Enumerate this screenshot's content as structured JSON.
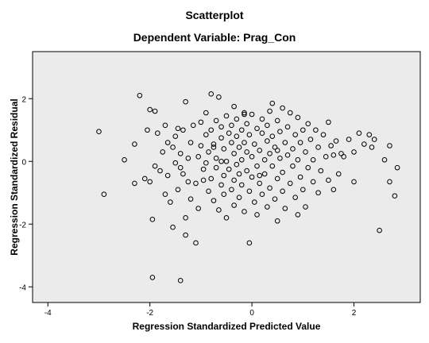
{
  "chart_data": {
    "type": "scatter",
    "title": "Scatterplot",
    "subtitle": "Dependent Variable: Prag_Con",
    "xlabel": "Regression Standardized Predicted Value",
    "ylabel": "Regression Standardized Residual",
    "xlim": [
      -4.3,
      3.3
    ],
    "ylim": [
      -4.5,
      3.5
    ],
    "xticks": [
      -4,
      -2,
      0,
      2
    ],
    "yticks": [
      2,
      0,
      -2,
      -4
    ],
    "grid": false,
    "legend": "none",
    "colors": {
      "plot_background": "#ebebeb",
      "points": "#000000"
    },
    "points": [
      [
        -3.0,
        0.95
      ],
      [
        -2.9,
        -1.05
      ],
      [
        -2.5,
        0.05
      ],
      [
        -2.3,
        0.55
      ],
      [
        -2.3,
        -0.7
      ],
      [
        -2.2,
        2.1
      ],
      [
        -2.1,
        -0.55
      ],
      [
        -2.0,
        1.65
      ],
      [
        -2.0,
        -0.65
      ],
      [
        -1.95,
        -1.85
      ],
      [
        -1.9,
        1.6
      ],
      [
        -1.9,
        -0.15
      ],
      [
        -1.85,
        0.9
      ],
      [
        -1.8,
        -0.3
      ],
      [
        -1.75,
        0.3
      ],
      [
        -1.7,
        1.15
      ],
      [
        -1.7,
        -1.05
      ],
      [
        -1.65,
        -0.45
      ],
      [
        -1.65,
        0.6
      ],
      [
        -1.6,
        -1.3
      ],
      [
        -1.55,
        0.45
      ],
      [
        -1.55,
        -2.1
      ],
      [
        -1.5,
        0.8
      ],
      [
        -1.5,
        -0.05
      ],
      [
        -1.45,
        1.05
      ],
      [
        -1.45,
        -0.9
      ],
      [
        -1.4,
        -0.2
      ],
      [
        -1.4,
        0.25
      ],
      [
        -1.35,
        1.0
      ],
      [
        -1.35,
        -0.4
      ],
      [
        -1.3,
        -1.8
      ],
      [
        -1.3,
        1.9
      ],
      [
        -1.25,
        0.1
      ],
      [
        -1.25,
        -0.65
      ],
      [
        -1.2,
        0.6
      ],
      [
        -1.2,
        -1.2
      ],
      [
        -1.15,
        1.15
      ],
      [
        -1.1,
        -0.7
      ],
      [
        -1.1,
        -2.6
      ],
      [
        -1.05,
        0.15
      ],
      [
        -1.05,
        -1.5
      ],
      [
        -1.0,
        0.5
      ],
      [
        -1.0,
        1.25
      ],
      [
        -0.95,
        -0.25
      ],
      [
        -0.95,
        -0.6
      ],
      [
        -0.9,
        1.55
      ],
      [
        -0.9,
        0.85
      ],
      [
        -0.9,
        -0.05
      ],
      [
        -0.85,
        0.3
      ],
      [
        -0.85,
        -0.95
      ],
      [
        -0.8,
        2.15
      ],
      [
        -0.8,
        1.0
      ],
      [
        -0.8,
        -0.55
      ],
      [
        -0.75,
        0.55
      ],
      [
        -0.75,
        -1.25
      ],
      [
        -0.7,
        0.1
      ],
      [
        -0.7,
        1.3
      ],
      [
        -0.7,
        -0.2
      ],
      [
        -0.65,
        2.05
      ],
      [
        -0.65,
        -1.55
      ],
      [
        -0.6,
        0.75
      ],
      [
        -0.6,
        -0.75
      ],
      [
        -0.6,
        1.1
      ],
      [
        -0.55,
        0.4
      ],
      [
        -0.55,
        -0.45
      ],
      [
        -0.55,
        -1.05
      ],
      [
        -0.5,
        0.0
      ],
      [
        -0.5,
        1.45
      ],
      [
        -0.5,
        -1.8
      ],
      [
        -0.45,
        0.9
      ],
      [
        -0.45,
        -0.25
      ],
      [
        -0.4,
        0.6
      ],
      [
        -0.4,
        -0.9
      ],
      [
        -0.4,
        1.15
      ],
      [
        -0.35,
        0.25
      ],
      [
        -0.35,
        -0.6
      ],
      [
        -0.35,
        -1.4
      ],
      [
        -0.3,
        0.8
      ],
      [
        -0.3,
        -0.1
      ],
      [
        -0.3,
        1.35
      ],
      [
        -0.25,
        0.45
      ],
      [
        -0.25,
        -1.15
      ],
      [
        -0.25,
        -0.4
      ],
      [
        -0.2,
        1.0
      ],
      [
        -0.2,
        0.05
      ],
      [
        -0.2,
        -0.75
      ],
      [
        -0.15,
        1.55
      ],
      [
        -0.15,
        0.6
      ],
      [
        -0.15,
        -1.6
      ],
      [
        -0.1,
        0.3
      ],
      [
        -0.1,
        -0.3
      ],
      [
        -0.1,
        1.2
      ],
      [
        -0.05,
        0.85
      ],
      [
        -0.05,
        -0.95
      ],
      [
        -0.05,
        -2.6
      ],
      [
        0.0,
        0.15
      ],
      [
        0.0,
        1.5
      ],
      [
        0.0,
        -0.5
      ],
      [
        0.05,
        0.55
      ],
      [
        0.05,
        -1.3
      ],
      [
        0.1,
        1.05
      ],
      [
        0.1,
        -0.15
      ],
      [
        0.1,
        -1.7
      ],
      [
        0.15,
        0.35
      ],
      [
        0.15,
        -0.7
      ],
      [
        0.2,
        0.9
      ],
      [
        0.2,
        1.35
      ],
      [
        0.2,
        -1.05
      ],
      [
        0.25,
        0.05
      ],
      [
        0.25,
        -0.4
      ],
      [
        0.3,
        0.65
      ],
      [
        0.3,
        1.15
      ],
      [
        0.3,
        -1.45
      ],
      [
        0.35,
        0.25
      ],
      [
        0.35,
        -0.85
      ],
      [
        0.4,
        1.85
      ],
      [
        0.4,
        0.8
      ],
      [
        0.4,
        -0.15
      ],
      [
        0.45,
        0.45
      ],
      [
        0.45,
        -1.2
      ],
      [
        0.5,
        1.3
      ],
      [
        0.5,
        -0.55
      ],
      [
        0.5,
        -1.9
      ],
      [
        0.55,
        0.1
      ],
      [
        0.55,
        0.95
      ],
      [
        0.6,
        1.7
      ],
      [
        0.6,
        -0.35
      ],
      [
        0.6,
        -0.95
      ],
      [
        0.65,
        0.6
      ],
      [
        0.65,
        -1.5
      ],
      [
        0.7,
        1.1
      ],
      [
        0.7,
        0.2
      ],
      [
        0.75,
        -0.7
      ],
      [
        0.75,
        1.55
      ],
      [
        0.8,
        0.4
      ],
      [
        0.8,
        -0.15
      ],
      [
        0.85,
        0.85
      ],
      [
        0.85,
        -1.15
      ],
      [
        0.9,
        1.4
      ],
      [
        0.9,
        0.05
      ],
      [
        0.95,
        -0.5
      ],
      [
        0.95,
        0.6
      ],
      [
        1.0,
        1.0
      ],
      [
        1.0,
        -0.9
      ],
      [
        1.05,
        0.3
      ],
      [
        1.05,
        -1.45
      ],
      [
        1.1,
        1.2
      ],
      [
        1.1,
        -0.2
      ],
      [
        1.15,
        0.7
      ],
      [
        1.2,
        -0.65
      ],
      [
        1.2,
        0.05
      ],
      [
        1.25,
        1.0
      ],
      [
        1.3,
        0.45
      ],
      [
        1.3,
        -1.0
      ],
      [
        1.35,
        -0.3
      ],
      [
        1.4,
        0.85
      ],
      [
        1.45,
        0.15
      ],
      [
        1.5,
        -0.6
      ],
      [
        1.5,
        1.25
      ],
      [
        1.55,
        0.5
      ],
      [
        1.6,
        -0.9
      ],
      [
        1.6,
        0.2
      ],
      [
        1.65,
        0.65
      ],
      [
        1.7,
        -0.4
      ],
      [
        1.75,
        0.25
      ],
      [
        1.8,
        0.15
      ],
      [
        1.9,
        0.7
      ],
      [
        2.0,
        -0.65
      ],
      [
        2.0,
        0.3
      ],
      [
        2.1,
        0.9
      ],
      [
        2.2,
        0.55
      ],
      [
        2.3,
        0.85
      ],
      [
        2.35,
        0.45
      ],
      [
        2.4,
        0.7
      ],
      [
        2.5,
        -2.2
      ],
      [
        2.7,
        0.5
      ],
      [
        2.8,
        -1.1
      ],
      [
        2.85,
        -0.2
      ],
      [
        2.7,
        -0.65
      ],
      [
        2.6,
        0.05
      ],
      [
        -1.95,
        -3.7
      ],
      [
        -1.4,
        -3.8
      ],
      [
        -1.3,
        -2.35
      ],
      [
        -2.05,
        1.0
      ],
      [
        -0.15,
        1.5
      ],
      [
        0.35,
        1.6
      ],
      [
        -0.6,
        0.0
      ],
      [
        -0.75,
        0.45
      ],
      [
        0.15,
        -0.45
      ],
      [
        0.5,
        0.35
      ],
      [
        -0.35,
        1.75
      ],
      [
        0.9,
        -1.7
      ]
    ]
  }
}
